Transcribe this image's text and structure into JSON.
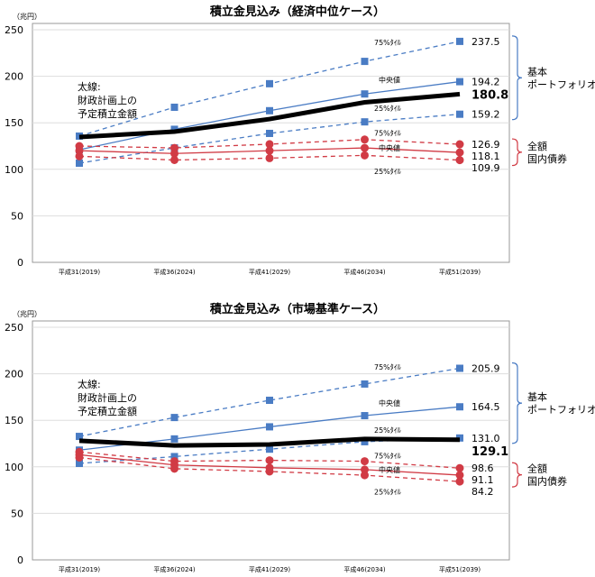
{
  "chart_data": [
    {
      "type": "line",
      "title": "積立金見込み（経済中位ケース）",
      "ylabel": "（兆円）",
      "ylim": [
        0,
        250
      ],
      "yticks": [
        0,
        50,
        100,
        150,
        200,
        250
      ],
      "grid": true,
      "categories": [
        "平成31(2019)",
        "平成36(2024)",
        "平成41(2029)",
        "平成46(2034)",
        "平成51(2039)"
      ],
      "note": [
        "太線:",
        "財政計画上の",
        "予定積立金額"
      ],
      "group_labels": [
        {
          "lines": [
            "基本",
            "ポートフォリオ"
          ],
          "color": "#4a7cc4"
        },
        {
          "lines": [
            "全額",
            "国内債券"
          ],
          "color": "#d13b45"
        }
      ],
      "series": [
        {
          "name": "基本ポートフォリオ 75%タイル",
          "label": "75%ﾀｲﾙ",
          "group": "basic",
          "style": "dashed",
          "values": [
            135.7,
            166.7,
            192,
            216,
            237.5
          ],
          "end_label": "237.5"
        },
        {
          "name": "基本ポートフォリオ 中央値",
          "label": "中央値",
          "group": "basic",
          "style": "solid",
          "values": [
            121,
            143,
            163,
            181,
            194.2
          ],
          "end_label": "194.2"
        },
        {
          "name": "基本ポートフォリオ 25%タイル",
          "label": "25%ﾀｲﾙ",
          "group": "basic",
          "style": "dashed",
          "values": [
            106.6,
            123,
            138.6,
            151,
            159.2
          ],
          "end_label": "159.2"
        },
        {
          "name": "財政計画上の予定積立金額",
          "label": "",
          "group": "plan",
          "style": "thick",
          "values": [
            134.7,
            140.5,
            154,
            172,
            180.8
          ],
          "end_label": "180.8"
        },
        {
          "name": "全額国内債券 75%タイル",
          "label": "75%ﾀｲﾙ",
          "group": "bond",
          "style": "dashed",
          "values": [
            125,
            123,
            127,
            132,
            126.9
          ],
          "end_label": "126.9"
        },
        {
          "name": "全額国内債券 中央値",
          "label": "中央値",
          "group": "bond",
          "style": "solid",
          "values": [
            120,
            117,
            120,
            123,
            118.1
          ],
          "end_label": "118.1"
        },
        {
          "name": "全額国内債券 25%タイル",
          "label": "25%ﾀｲﾙ",
          "group": "bond",
          "style": "dashed",
          "values": [
            114,
            110,
            112,
            115,
            109.9
          ],
          "end_label": "109.9"
        }
      ]
    },
    {
      "type": "line",
      "title": "積立金見込み（市場基準ケース）",
      "ylabel": "（兆円）",
      "ylim": [
        0,
        250
      ],
      "yticks": [
        0,
        50,
        100,
        150,
        200,
        250
      ],
      "grid": true,
      "categories": [
        "平成31(2019)",
        "平成36(2024)",
        "平成41(2029)",
        "平成46(2034)",
        "平成51(2039)"
      ],
      "note": [
        "太線:",
        "財政計画上の",
        "予定積立金額"
      ],
      "group_labels": [
        {
          "lines": [
            "基本",
            "ポートフォリオ"
          ],
          "color": "#4a7cc4"
        },
        {
          "lines": [
            "全額",
            "国内債券"
          ],
          "color": "#d13b45"
        }
      ],
      "series": [
        {
          "name": "基本ポートフォリオ 75%タイル",
          "label": "75%ﾀｲﾙ",
          "group": "basic",
          "style": "dashed",
          "values": [
            132.7,
            153,
            171.5,
            189,
            205.9
          ],
          "end_label": "205.9"
        },
        {
          "name": "基本ポートフォリオ 中央値",
          "label": "中央値",
          "group": "basic",
          "style": "solid",
          "values": [
            118,
            130,
            143,
            155,
            164.5
          ],
          "end_label": "164.5"
        },
        {
          "name": "基本ポートフォリオ 25%タイル",
          "label": "25%ﾀｲﾙ",
          "group": "basic",
          "style": "dashed",
          "values": [
            103.7,
            111,
            119,
            127,
            131.0
          ],
          "end_label": "131.0"
        },
        {
          "name": "財政計画上の予定積立金額",
          "label": "",
          "group": "plan",
          "style": "thick",
          "values": [
            128,
            123,
            124,
            130,
            129.1
          ],
          "end_label": "129.1"
        },
        {
          "name": "全額国内債券 75%タイル",
          "label": "75%ﾀｲﾙ",
          "group": "bond",
          "style": "dashed",
          "values": [
            116,
            106,
            107,
            106,
            98.6
          ],
          "end_label": "98.6"
        },
        {
          "name": "全額国内債券 中央値",
          "label": "中央値",
          "group": "bond",
          "style": "solid",
          "values": [
            113,
            102,
            99,
            97,
            91.1
          ],
          "end_label": "91.1"
        },
        {
          "name": "全額国内債券 25%タイル",
          "label": "25%ﾀｲﾙ",
          "group": "bond",
          "style": "dashed",
          "values": [
            110,
            98,
            95,
            91,
            84.2
          ],
          "end_label": "84.2"
        }
      ]
    }
  ],
  "colors": {
    "basic": "#4a7cc4",
    "bond": "#d13b45",
    "plan": "#000000"
  }
}
